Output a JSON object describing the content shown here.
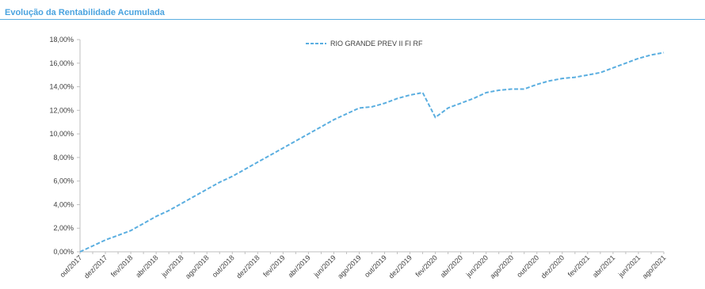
{
  "header": {
    "title": "Evolução da Rentabilidade Acumulada"
  },
  "chart_data": {
    "type": "line",
    "title": "Evolução da Rentabilidade Acumulada",
    "xlabel": "",
    "ylabel": "",
    "ylim": [
      0,
      18
    ],
    "y_ticks": [
      "0,00%",
      "2,00%",
      "4,00%",
      "6,00%",
      "8,00%",
      "10,00%",
      "12,00%",
      "14,00%",
      "16,00%",
      "18,00%"
    ],
    "y_tick_values": [
      0,
      2,
      4,
      6,
      8,
      10,
      12,
      14,
      16,
      18
    ],
    "x_range": [
      "2017-10",
      "2021-08"
    ],
    "x_ticks": [
      "out/2017",
      "dez/2017",
      "fev/2018",
      "abr/2018",
      "jun/2018",
      "ago/2018",
      "out/2018",
      "dez/2018",
      "fev/2019",
      "abr/2019",
      "jun/2019",
      "ago/2019",
      "out/2019",
      "dez/2019",
      "fev/2020",
      "abr/2020",
      "jun/2020",
      "ago/2020",
      "out/2020",
      "dez/2020",
      "fev/2021",
      "abr/2021",
      "jun/2021",
      "ago/2021"
    ],
    "grid": false,
    "legend_position": "top-center",
    "series": [
      {
        "name": "RIO GRANDE PREV II FI RF",
        "color": "#5aaee0",
        "line_style": "dashed",
        "x": [
          "2017-10",
          "2017-11",
          "2017-12",
          "2018-01",
          "2018-02",
          "2018-03",
          "2018-04",
          "2018-05",
          "2018-06",
          "2018-07",
          "2018-08",
          "2018-09",
          "2018-10",
          "2018-11",
          "2018-12",
          "2019-01",
          "2019-02",
          "2019-03",
          "2019-04",
          "2019-05",
          "2019-06",
          "2019-07",
          "2019-08",
          "2019-09",
          "2019-10",
          "2019-11",
          "2019-12",
          "2020-01",
          "2020-02",
          "2020-03",
          "2020-04",
          "2020-05",
          "2020-06",
          "2020-07",
          "2020-08",
          "2020-09",
          "2020-10",
          "2020-11",
          "2020-12",
          "2021-01",
          "2021-02",
          "2021-03",
          "2021-04",
          "2021-05",
          "2021-06",
          "2021-07",
          "2021-08"
        ],
        "values": [
          0.0,
          0.5,
          1.0,
          1.4,
          1.8,
          2.4,
          3.0,
          3.5,
          4.1,
          4.7,
          5.3,
          5.9,
          6.4,
          7.0,
          7.6,
          8.2,
          8.8,
          9.4,
          10.0,
          10.6,
          11.2,
          11.7,
          12.2,
          12.3,
          12.6,
          13.0,
          13.3,
          13.5,
          11.4,
          12.2,
          12.6,
          13.0,
          13.5,
          13.7,
          13.8,
          13.8,
          14.2,
          14.5,
          14.7,
          14.8,
          15.0,
          15.2,
          15.6,
          16.0,
          16.4,
          16.7,
          16.9
        ]
      }
    ]
  }
}
